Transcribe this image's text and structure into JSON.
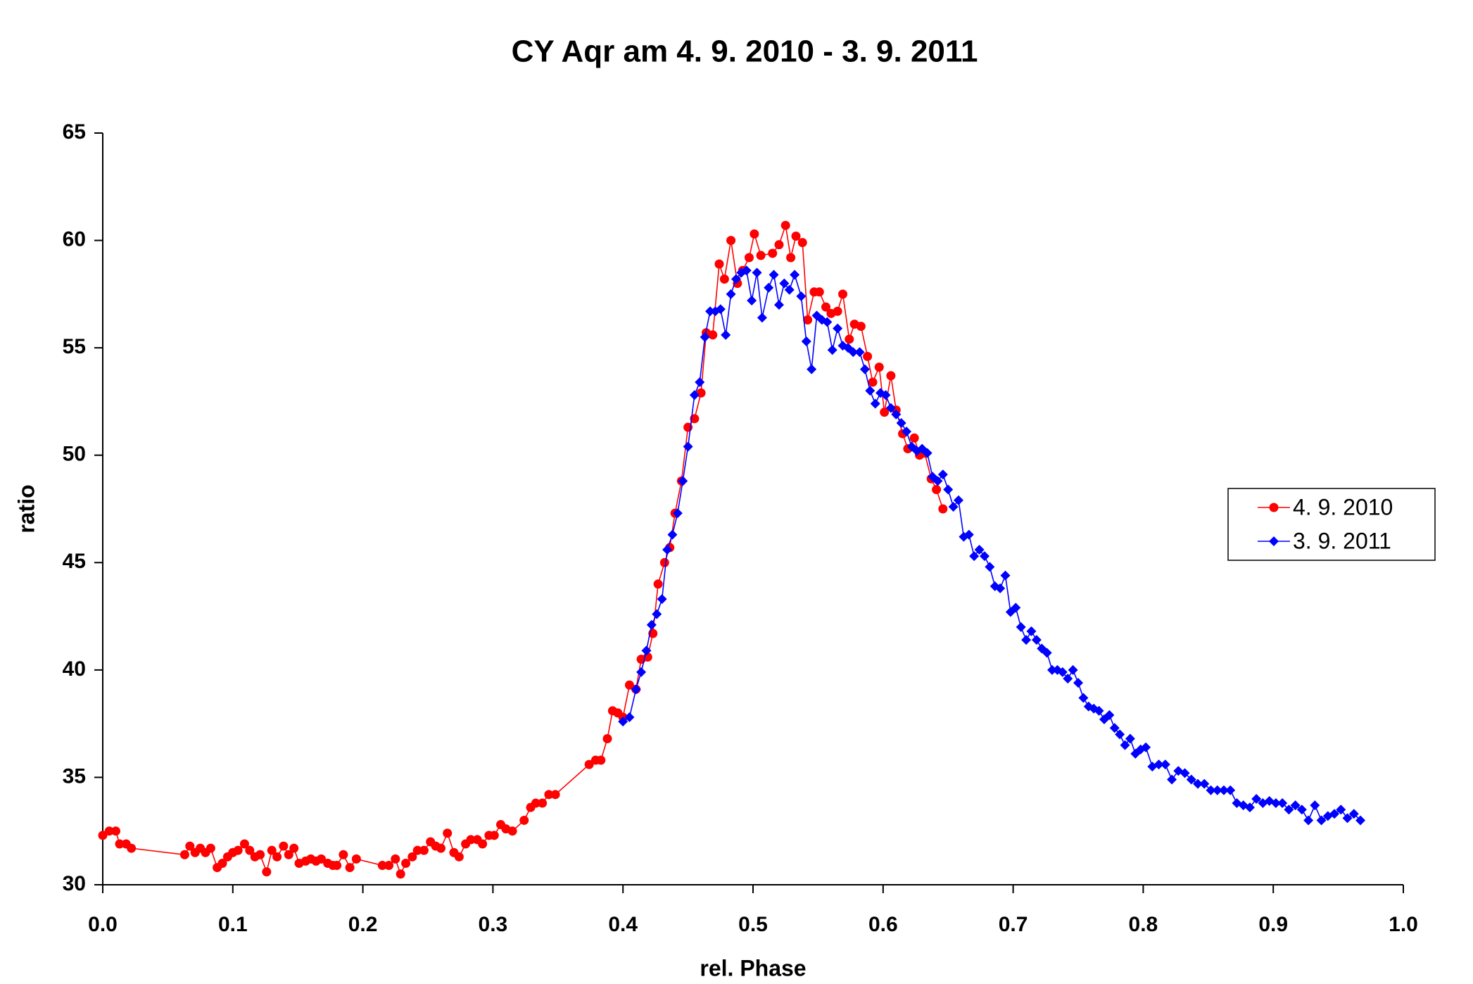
{
  "chart_data": {
    "type": "line",
    "title": "CY Aqr am 4. 9. 2010 - 3. 9. 2011",
    "x_label": "rel. Phase",
    "y_label": "ratio",
    "xlim": [
      0,
      1
    ],
    "ylim": [
      30,
      65
    ],
    "xticks": [
      {
        "value": 0,
        "label": "0.0"
      },
      0.1,
      0.2,
      0.3,
      0.4,
      0.5,
      0.6,
      0.7,
      0.8,
      0.9,
      {
        "value": 1,
        "label": "1.0"
      }
    ],
    "yticks": [
      30,
      35,
      40,
      45,
      50,
      55,
      60,
      65
    ],
    "grid": false,
    "legend": "right",
    "series": [
      {
        "name": "4. 9. 2010",
        "color": "#ff0000",
        "marker": "circle",
        "x": [
          0.0,
          0.005,
          0.01,
          0.013,
          0.018,
          0.022,
          0.063,
          0.067,
          0.071,
          0.075,
          0.079,
          0.083,
          0.088,
          0.092,
          0.096,
          0.1,
          0.104,
          0.109,
          0.113,
          0.117,
          0.121,
          0.126,
          0.13,
          0.134,
          0.139,
          0.143,
          0.147,
          0.151,
          0.156,
          0.16,
          0.164,
          0.168,
          0.173,
          0.177,
          0.18,
          0.185,
          0.19,
          0.195,
          0.215,
          0.22,
          0.225,
          0.229,
          0.233,
          0.238,
          0.242,
          0.247,
          0.252,
          0.256,
          0.26,
          0.265,
          0.27,
          0.274,
          0.279,
          0.283,
          0.288,
          0.292,
          0.297,
          0.301,
          0.306,
          0.31,
          0.315,
          0.324,
          0.329,
          0.333,
          0.338,
          0.343,
          0.348,
          0.374,
          0.379,
          0.383,
          0.388,
          0.392,
          0.396,
          0.4,
          0.405,
          0.41,
          0.414,
          0.419,
          0.423,
          0.427,
          0.432,
          0.436,
          0.44,
          0.445,
          0.45,
          0.455,
          0.46,
          0.464,
          0.469,
          0.474,
          0.478,
          0.483,
          0.488,
          0.492,
          0.497,
          0.501,
          0.506,
          0.515,
          0.52,
          0.525,
          0.529,
          0.533,
          0.538,
          0.542,
          0.547,
          0.551,
          0.556,
          0.56,
          0.565,
          0.569,
          0.574,
          0.578,
          0.583,
          0.588,
          0.592,
          0.597,
          0.601,
          0.606,
          0.61,
          0.615,
          0.619,
          0.624,
          0.628,
          0.632,
          0.637,
          0.641,
          0.646
        ],
        "values": [
          32.3,
          32.5,
          32.5,
          31.9,
          31.9,
          31.7,
          31.4,
          31.8,
          31.5,
          31.7,
          31.5,
          31.7,
          30.8,
          31.0,
          31.3,
          31.5,
          31.6,
          31.9,
          31.6,
          31.3,
          31.4,
          30.6,
          31.6,
          31.3,
          31.8,
          31.4,
          31.7,
          31.0,
          31.1,
          31.2,
          31.1,
          31.2,
          31.0,
          30.9,
          30.9,
          31.4,
          30.8,
          31.2,
          30.9,
          30.9,
          31.2,
          30.5,
          31.0,
          31.3,
          31.6,
          31.6,
          32.0,
          31.8,
          31.7,
          32.4,
          31.5,
          31.3,
          31.9,
          32.1,
          32.1,
          31.9,
          32.3,
          32.3,
          32.8,
          32.6,
          32.5,
          33.0,
          33.6,
          33.8,
          33.8,
          34.2,
          34.2,
          35.6,
          35.8,
          35.8,
          36.8,
          38.1,
          38.0,
          37.8,
          39.3,
          39.1,
          40.5,
          40.6,
          41.7,
          44.0,
          45.0,
          45.7,
          47.3,
          48.8,
          51.3,
          51.7,
          52.9,
          55.7,
          55.6,
          58.9,
          58.2,
          60.0,
          58.0,
          58.6,
          59.2,
          60.3,
          59.3,
          59.4,
          59.8,
          60.7,
          59.2,
          60.2,
          59.9,
          56.3,
          57.6,
          57.6,
          56.9,
          56.6,
          56.7,
          57.5,
          55.4,
          56.1,
          56.0,
          54.6,
          53.4,
          54.1,
          52.0,
          53.7,
          52.1,
          51.0,
          50.3,
          50.8,
          50.0,
          50.1,
          48.9,
          48.4,
          47.5
        ]
      },
      {
        "name": "3. 9. 2011",
        "color": "#0000ff",
        "marker": "diamond",
        "x": [
          0.4,
          0.405,
          0.41,
          0.414,
          0.418,
          0.422,
          0.426,
          0.43,
          0.434,
          0.438,
          0.442,
          0.446,
          0.45,
          0.455,
          0.459,
          0.463,
          0.467,
          0.471,
          0.475,
          0.479,
          0.483,
          0.487,
          0.491,
          0.495,
          0.499,
          0.503,
          0.507,
          0.512,
          0.516,
          0.52,
          0.524,
          0.528,
          0.532,
          0.537,
          0.541,
          0.545,
          0.549,
          0.553,
          0.557,
          0.561,
          0.565,
          0.569,
          0.573,
          0.577,
          0.582,
          0.586,
          0.59,
          0.594,
          0.598,
          0.602,
          0.606,
          0.61,
          0.614,
          0.618,
          0.622,
          0.626,
          0.63,
          0.634,
          0.638,
          0.642,
          0.646,
          0.65,
          0.654,
          0.658,
          0.662,
          0.666,
          0.67,
          0.674,
          0.678,
          0.682,
          0.686,
          0.69,
          0.694,
          0.698,
          0.702,
          0.706,
          0.71,
          0.714,
          0.718,
          0.722,
          0.726,
          0.73,
          0.734,
          0.738,
          0.742,
          0.746,
          0.75,
          0.754,
          0.758,
          0.762,
          0.766,
          0.77,
          0.774,
          0.778,
          0.782,
          0.786,
          0.79,
          0.794,
          0.798,
          0.802,
          0.807,
          0.812,
          0.817,
          0.822,
          0.827,
          0.832,
          0.837,
          0.842,
          0.847,
          0.852,
          0.857,
          0.862,
          0.867,
          0.872,
          0.877,
          0.882,
          0.887,
          0.892,
          0.897,
          0.902,
          0.907,
          0.912,
          0.917,
          0.922,
          0.927,
          0.932,
          0.937,
          0.942,
          0.947,
          0.952,
          0.957,
          0.962,
          0.967
        ],
        "values": [
          37.6,
          37.8,
          39.1,
          39.9,
          40.9,
          42.1,
          42.6,
          43.3,
          45.6,
          46.3,
          47.3,
          48.8,
          50.4,
          52.8,
          53.4,
          55.5,
          56.7,
          56.7,
          56.8,
          55.6,
          57.5,
          58.2,
          58.5,
          58.6,
          57.2,
          58.5,
          56.4,
          57.8,
          58.4,
          57.0,
          58.0,
          57.7,
          58.4,
          57.4,
          55.3,
          54.0,
          56.5,
          56.3,
          56.2,
          54.9,
          55.9,
          55.1,
          55.0,
          54.8,
          54.8,
          54.0,
          53.0,
          52.4,
          52.9,
          52.8,
          52.2,
          51.9,
          51.5,
          51.1,
          50.4,
          50.2,
          50.3,
          50.1,
          49.0,
          48.8,
          49.1,
          48.4,
          47.6,
          47.9,
          46.2,
          46.3,
          45.3,
          45.6,
          45.3,
          44.8,
          43.9,
          43.8,
          44.4,
          42.7,
          42.9,
          42.0,
          41.4,
          41.8,
          41.4,
          41.0,
          40.8,
          40.0,
          40.0,
          39.9,
          39.6,
          40.0,
          39.4,
          38.7,
          38.3,
          38.2,
          38.1,
          37.7,
          37.9,
          37.3,
          37.0,
          36.5,
          36.8,
          36.1,
          36.3,
          36.4,
          35.5,
          35.6,
          35.6,
          34.9,
          35.3,
          35.2,
          34.9,
          34.7,
          34.7,
          34.4,
          34.4,
          34.4,
          34.4,
          33.8,
          33.7,
          33.6,
          34.0,
          33.8,
          33.9,
          33.8,
          33.8,
          33.5,
          33.7,
          33.5,
          33.0,
          33.7,
          33.0,
          33.2,
          33.3,
          33.5,
          33.1,
          33.3,
          33.0
        ]
      }
    ]
  }
}
